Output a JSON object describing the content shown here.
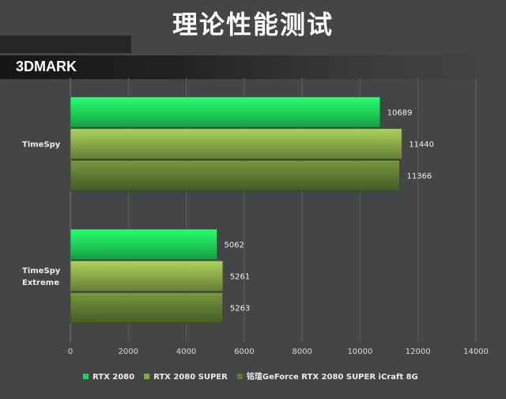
{
  "title": "理论性能测试",
  "subtitle": "3DMARK",
  "chart_data": {
    "type": "bar",
    "orientation": "horizontal",
    "categories": [
      "TimeSpy",
      "TimeSpy\nExtreme"
    ],
    "series": [
      {
        "name": "RTX 2080",
        "values": [
          10689,
          5062
        ],
        "color": "#1fd15a"
      },
      {
        "name": "RTX 2080 SUPER",
        "values": [
          11440,
          5261
        ],
        "color": "#8aa84a"
      },
      {
        "name": "铭瑄GeForce RTX 2080 SUPER iCraft 8G",
        "values": [
          11366,
          5263
        ],
        "color": "#5e7a33"
      }
    ],
    "xlim": [
      0,
      14000
    ],
    "xticks": [
      0,
      2000,
      4000,
      6000,
      8000,
      10000,
      12000,
      14000
    ],
    "grid": true,
    "legend": "bottom"
  }
}
